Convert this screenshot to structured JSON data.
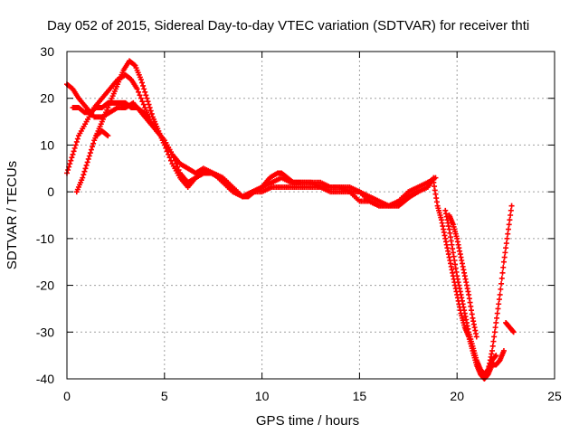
{
  "chart_data": {
    "type": "scatter",
    "title": "Day 052 of 2015, Sidereal Day-to-day VTEC variation (SDTVAR) for receiver thti",
    "xlabel": "GPS time / hours",
    "ylabel": "SDTVAR / TECUs",
    "xlim": [
      0,
      25
    ],
    "ylim": [
      -40,
      30
    ],
    "xticks": [
      0,
      5,
      10,
      15,
      20,
      25
    ],
    "yticks": [
      30,
      20,
      10,
      0,
      -10,
      -20,
      -30,
      -40
    ],
    "grid": true,
    "marker": "plus",
    "color": "#ff0000",
    "series": [
      {
        "x": [
          0.0,
          0.3,
          0.6,
          1.0,
          1.4,
          1.8,
          2.2,
          2.6,
          3.0,
          3.3,
          3.6,
          4.0,
          4.3,
          4.6,
          5.0,
          5.4,
          5.8,
          6.2,
          6.6,
          7.0,
          7.4,
          7.8,
          8.2,
          8.6,
          9.0,
          9.3,
          9.6,
          10.0,
          10.4,
          10.8,
          11.0,
          11.3,
          11.6,
          12.0,
          12.5,
          13.0,
          13.5,
          14.0,
          14.5,
          15.0,
          15.5,
          16.0,
          16.5,
          17.0,
          17.3,
          17.6,
          18.0,
          18.5,
          18.8
        ],
        "y": [
          4,
          8,
          12,
          15,
          18,
          20,
          22,
          24,
          25,
          24,
          22,
          18,
          15,
          13,
          11,
          8,
          4,
          2,
          3,
          4,
          4,
          3,
          2,
          0,
          -1,
          -1,
          0,
          1,
          3,
          4,
          4,
          3,
          2,
          2,
          2,
          1,
          1,
          1,
          0,
          0,
          -2,
          -3,
          -3,
          -3,
          -2,
          -1,
          0,
          1,
          3
        ]
      },
      {
        "x": [
          0.5,
          0.8,
          1.1,
          1.4,
          1.7,
          2.0,
          2.3,
          2.6,
          2.9,
          3.2,
          3.5,
          3.8,
          4.1,
          4.4,
          4.7,
          5.0,
          5.4,
          5.8,
          6.2,
          6.6,
          7.0,
          7.5,
          8.0,
          8.5,
          9.0,
          9.5,
          10.0,
          10.5,
          11.0,
          11.5,
          12.0,
          12.5,
          13.0,
          13.5,
          14.0,
          14.5,
          15.0,
          15.5,
          16.0,
          16.5,
          17.0,
          17.5,
          18.0
        ],
        "y": [
          0,
          3,
          7,
          11,
          14,
          17,
          20,
          23,
          26,
          28,
          27,
          24,
          20,
          16,
          13,
          10,
          6,
          3,
          1,
          3,
          4,
          4,
          2,
          0,
          -1,
          0,
          1,
          2,
          3,
          2,
          2,
          2,
          2,
          1,
          1,
          1,
          0,
          -1,
          -2,
          -3,
          -3,
          -1,
          0
        ]
      },
      {
        "x": [
          0.0,
          0.3,
          0.6,
          1.0,
          1.4,
          1.8,
          2.2,
          2.6,
          3.0,
          3.4,
          3.8,
          4.2,
          4.6,
          5.0,
          5.4,
          5.8,
          6.2,
          6.6,
          7.0,
          7.5,
          8.0,
          8.5,
          9.0,
          9.5,
          10.0,
          10.5,
          11.0,
          11.5,
          12.0,
          12.5,
          13.0,
          13.5,
          14.0,
          14.5,
          15.0,
          15.5,
          16.0,
          16.5,
          17.0,
          17.5,
          18.0,
          18.5,
          18.9
        ],
        "y": [
          23,
          22,
          20,
          18,
          16,
          16,
          17,
          18,
          18,
          19,
          17,
          15,
          13,
          11,
          8,
          6,
          5,
          4,
          5,
          4,
          3,
          1,
          -1,
          0,
          0,
          1,
          1,
          1,
          1,
          1,
          1,
          0,
          0,
          0,
          -2,
          -2,
          -3,
          -3,
          -2,
          0,
          1,
          2,
          3
        ]
      },
      {
        "x": [
          0.3,
          0.6,
          0.9,
          1.2,
          1.5,
          1.8,
          2.1,
          2.4,
          2.7,
          3.0,
          3.3,
          3.6,
          3.9,
          4.2
        ],
        "y": [
          18,
          18,
          17,
          17,
          18,
          18,
          19,
          19,
          19,
          19,
          18,
          18,
          17,
          16
        ]
      },
      {
        "x": [
          1.5,
          1.8,
          2.1
        ],
        "y": [
          12,
          13,
          12
        ]
      },
      {
        "x": [
          18.8,
          19.0,
          19.2,
          19.4,
          19.6,
          19.8,
          20.0,
          20.2,
          20.4,
          20.6,
          20.8,
          21.0,
          21.2,
          21.4,
          21.6,
          21.8,
          22.0,
          22.2,
          22.4
        ],
        "y": [
          2,
          -3,
          -6,
          -10,
          -14,
          -18,
          -22,
          -26,
          -29,
          -31,
          -34,
          -37,
          -39,
          -40,
          -39,
          -37,
          -37,
          -36,
          -34
        ]
      },
      {
        "x": [
          19.4,
          19.6,
          19.8,
          20.0,
          20.2,
          20.4,
          20.6,
          20.8,
          21.0,
          21.2,
          21.4,
          21.6,
          21.8,
          22.0
        ],
        "y": [
          -4,
          -8,
          -13,
          -18,
          -22,
          -26,
          -30,
          -33,
          -36,
          -38,
          -39,
          -38,
          -36,
          -35
        ]
      },
      {
        "x": [
          19.6,
          19.8,
          20.0,
          20.2,
          20.4,
          20.6,
          20.8,
          21.0
        ],
        "y": [
          -5,
          -7,
          -10,
          -14,
          -18,
          -22,
          -27,
          -31
        ]
      },
      {
        "x": [
          21.6,
          21.8,
          22.0,
          22.2,
          22.4,
          22.6,
          22.8
        ],
        "y": [
          -38,
          -34,
          -28,
          -22,
          -15,
          -9,
          -3
        ]
      },
      {
        "x": [
          22.5,
          22.7,
          22.9
        ],
        "y": [
          -28,
          -29,
          -30
        ]
      }
    ]
  }
}
